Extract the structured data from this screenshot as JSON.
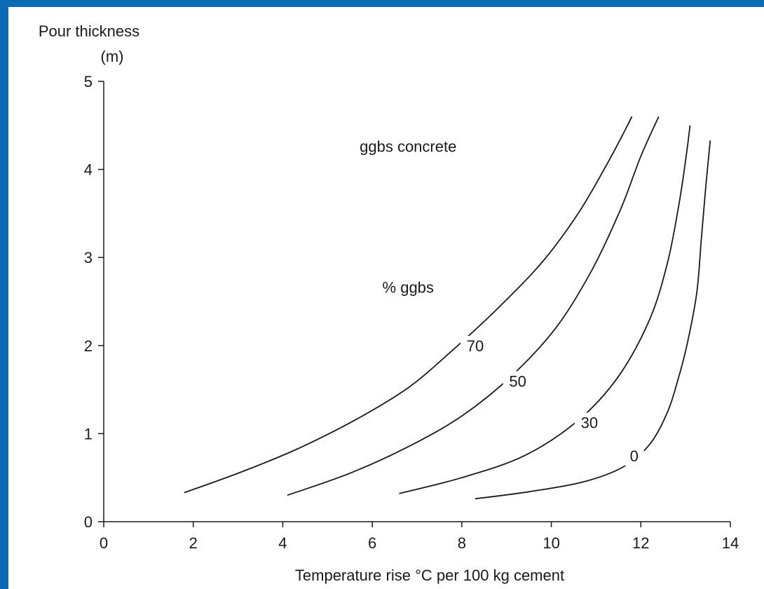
{
  "chart_data": {
    "type": "line",
    "title": "",
    "annotation_title": "ggbs concrete",
    "legend_title": "% ggbs",
    "ylabel": "Pour thickness",
    "ylabel_unit": "(m)",
    "xlabel": "Temperature rise °C per 100 kg cement",
    "xlim": [
      0,
      14
    ],
    "ylim": [
      0,
      5
    ],
    "xticks": [
      0,
      2,
      4,
      6,
      8,
      10,
      12,
      14
    ],
    "yticks": [
      0,
      1,
      2,
      3,
      4,
      5
    ],
    "grid": false,
    "series": [
      {
        "name": "70",
        "x": [
          1.8,
          3.0,
          4.3,
          5.6,
          6.8,
          7.8,
          8.8,
          9.8,
          10.6,
          11.2,
          11.55,
          11.8
        ],
        "y": [
          0.33,
          0.55,
          0.82,
          1.15,
          1.52,
          1.95,
          2.42,
          2.95,
          3.5,
          4.02,
          4.35,
          4.6
        ]
      },
      {
        "name": "50",
        "x": [
          4.1,
          5.5,
          6.8,
          8.0,
          9.1,
          10.1,
          10.9,
          11.55,
          12.0,
          12.4
        ],
        "y": [
          0.3,
          0.55,
          0.85,
          1.2,
          1.65,
          2.2,
          2.85,
          3.55,
          4.15,
          4.6
        ]
      },
      {
        "name": "30",
        "x": [
          6.6,
          8.0,
          9.4,
          10.6,
          11.5,
          12.2,
          12.6,
          12.85,
          13.0,
          13.1
        ],
        "y": [
          0.32,
          0.5,
          0.75,
          1.15,
          1.65,
          2.3,
          2.95,
          3.6,
          4.1,
          4.5
        ]
      },
      {
        "name": "0",
        "x": [
          8.3,
          9.5,
          10.7,
          11.6,
          12.2,
          12.6,
          12.85,
          13.05,
          13.25,
          13.35,
          13.45,
          13.55
        ],
        "y": [
          0.26,
          0.34,
          0.45,
          0.62,
          0.88,
          1.25,
          1.65,
          2.05,
          2.6,
          3.2,
          3.8,
          4.33
        ]
      }
    ],
    "series_label_positions": [
      {
        "name": "70",
        "x": 8.3,
        "y": 1.95
      },
      {
        "name": "50",
        "x": 9.25,
        "y": 1.55
      },
      {
        "name": "30",
        "x": 10.85,
        "y": 1.08
      },
      {
        "name": "0",
        "x": 11.85,
        "y": 0.7
      }
    ],
    "annotation_positions": {
      "title": {
        "x": 6.8,
        "y": 4.2
      },
      "legend_title": {
        "x": 6.8,
        "y": 2.6
      }
    },
    "colors": {
      "line": "#1a1a1a",
      "background": "#ffffff",
      "border": "#0a6ab4"
    }
  }
}
